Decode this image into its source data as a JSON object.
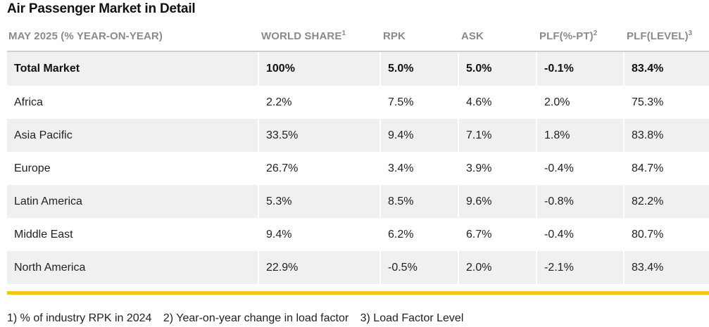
{
  "title": "Air Passenger Market in Detail",
  "table": {
    "headers": [
      {
        "label": "MAY 2025 (% YEAR-ON-YEAR)",
        "sup": ""
      },
      {
        "label": "WORLD SHARE",
        "sup": "1"
      },
      {
        "label": "RPK",
        "sup": ""
      },
      {
        "label": "ASK",
        "sup": ""
      },
      {
        "label": "PLF(%-PT)",
        "sup": "2"
      },
      {
        "label": "PLF(LEVEL)",
        "sup": "3"
      }
    ],
    "rows": [
      {
        "region": "Total Market",
        "world_share": "100%",
        "rpk": "5.0%",
        "ask": "5.0%",
        "plf_pt": "-0.1%",
        "plf_level": "83.4%"
      },
      {
        "region": "Africa",
        "world_share": "2.2%",
        "rpk": "7.5%",
        "ask": "4.6%",
        "plf_pt": "2.0%",
        "plf_level": "75.3%"
      },
      {
        "region": "Asia Pacific",
        "world_share": "33.5%",
        "rpk": "9.4%",
        "ask": "7.1%",
        "plf_pt": "1.8%",
        "plf_level": "83.8%"
      },
      {
        "region": "Europe",
        "world_share": "26.7%",
        "rpk": "3.4%",
        "ask": "3.9%",
        "plf_pt": "-0.4%",
        "plf_level": "84.7%"
      },
      {
        "region": "Latin America",
        "world_share": "5.3%",
        "rpk": "8.5%",
        "ask": "9.6%",
        "plf_pt": "-0.8%",
        "plf_level": "82.2%"
      },
      {
        "region": "Middle East",
        "world_share": "9.4%",
        "rpk": "6.2%",
        "ask": "6.7%",
        "plf_pt": "-0.4%",
        "plf_level": "80.7%"
      },
      {
        "region": "North America",
        "world_share": "22.9%",
        "rpk": "-0.5%",
        "ask": "2.0%",
        "plf_pt": "-2.1%",
        "plf_level": "83.4%"
      }
    ]
  },
  "footnotes": [
    "1) % of industry RPK in 2024",
    "2) Year-on-year change in load factor",
    "3) Load Factor Level"
  ],
  "colors": {
    "accent_bar": "#f2c51b",
    "row_shade": "#f0f0f0",
    "header_text": "#8a8a8a"
  }
}
